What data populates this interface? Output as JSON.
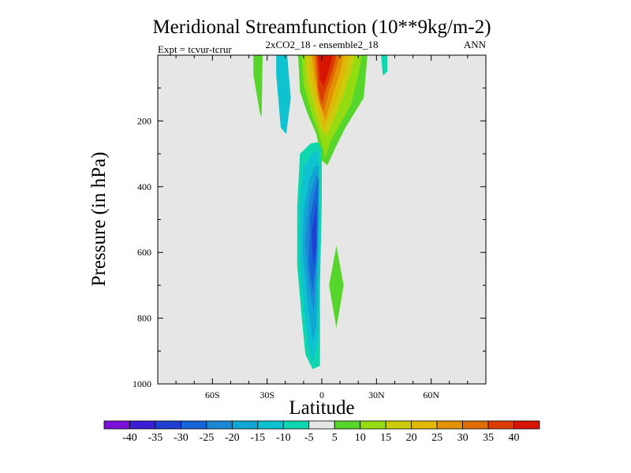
{
  "chart_data": {
    "type": "contour",
    "title": "Meridional Streamfunction (10**9kg/m-2)",
    "subtitle_left": "Expt = tcvur-tcrur",
    "subtitle_center": "2xCO2_18 - ensemble2_18",
    "subtitle_right": "ANN",
    "xlabel": "Latitude",
    "ylabel": "Pressure (in hPa)",
    "xlim": [
      -90,
      90
    ],
    "ylim": [
      1000,
      0
    ],
    "x_ticks": [
      {
        "value": -60,
        "label": "60S"
      },
      {
        "value": -30,
        "label": "30S"
      },
      {
        "value": 0,
        "label": "0"
      },
      {
        "value": 30,
        "label": "30N"
      },
      {
        "value": 60,
        "label": "60N"
      }
    ],
    "y_ticks": [
      {
        "value": 200,
        "label": "200"
      },
      {
        "value": 400,
        "label": "400"
      },
      {
        "value": 600,
        "label": "600"
      },
      {
        "value": 800,
        "label": "800"
      },
      {
        "value": 1000,
        "label": "1000"
      }
    ],
    "background_color": "#e6e6e6",
    "colorbar": {
      "boundaries": [
        "-40",
        "-35",
        "-30",
        "-25",
        "-20",
        "-15",
        "-10",
        "-5",
        "5",
        "10",
        "15",
        "20",
        "25",
        "30",
        "35",
        "40"
      ],
      "colors": [
        "#7a10d8",
        "#3a1ed6",
        "#1e3fd0",
        "#1664d6",
        "#1a86d4",
        "#12a6d4",
        "#0ec2d0",
        "#10d6b0",
        "#e6e6e6",
        "#56d62a",
        "#94dc10",
        "#cccc0c",
        "#e0b808",
        "#e49204",
        "#e06c04",
        "#dc3c02",
        "#d81402"
      ]
    },
    "features": [
      {
        "name": "upper-tropospheric positive cell",
        "lat": [
          -15,
          25
        ],
        "pressure": [
          0,
          320
        ],
        "peak": 40
      },
      {
        "name": "lower-tropospheric negative cell",
        "lat": [
          -15,
          0
        ],
        "pressure": [
          260,
          950
        ],
        "peak": -30
      },
      {
        "name": "small positive cell",
        "lat": [
          4,
          12
        ],
        "pressure": [
          580,
          830
        ],
        "peak": 10
      },
      {
        "name": "upper negative lobe",
        "lat": [
          -25,
          -16
        ],
        "pressure": [
          0,
          240
        ],
        "peak": -10
      },
      {
        "name": "upper positive lobe",
        "lat": [
          -38,
          -32
        ],
        "pressure": [
          0,
          190
        ],
        "peak": 10
      },
      {
        "name": "upper negative lobe",
        "lat": [
          32,
          36
        ],
        "pressure": [
          0,
          60
        ],
        "peak": -10
      }
    ]
  }
}
